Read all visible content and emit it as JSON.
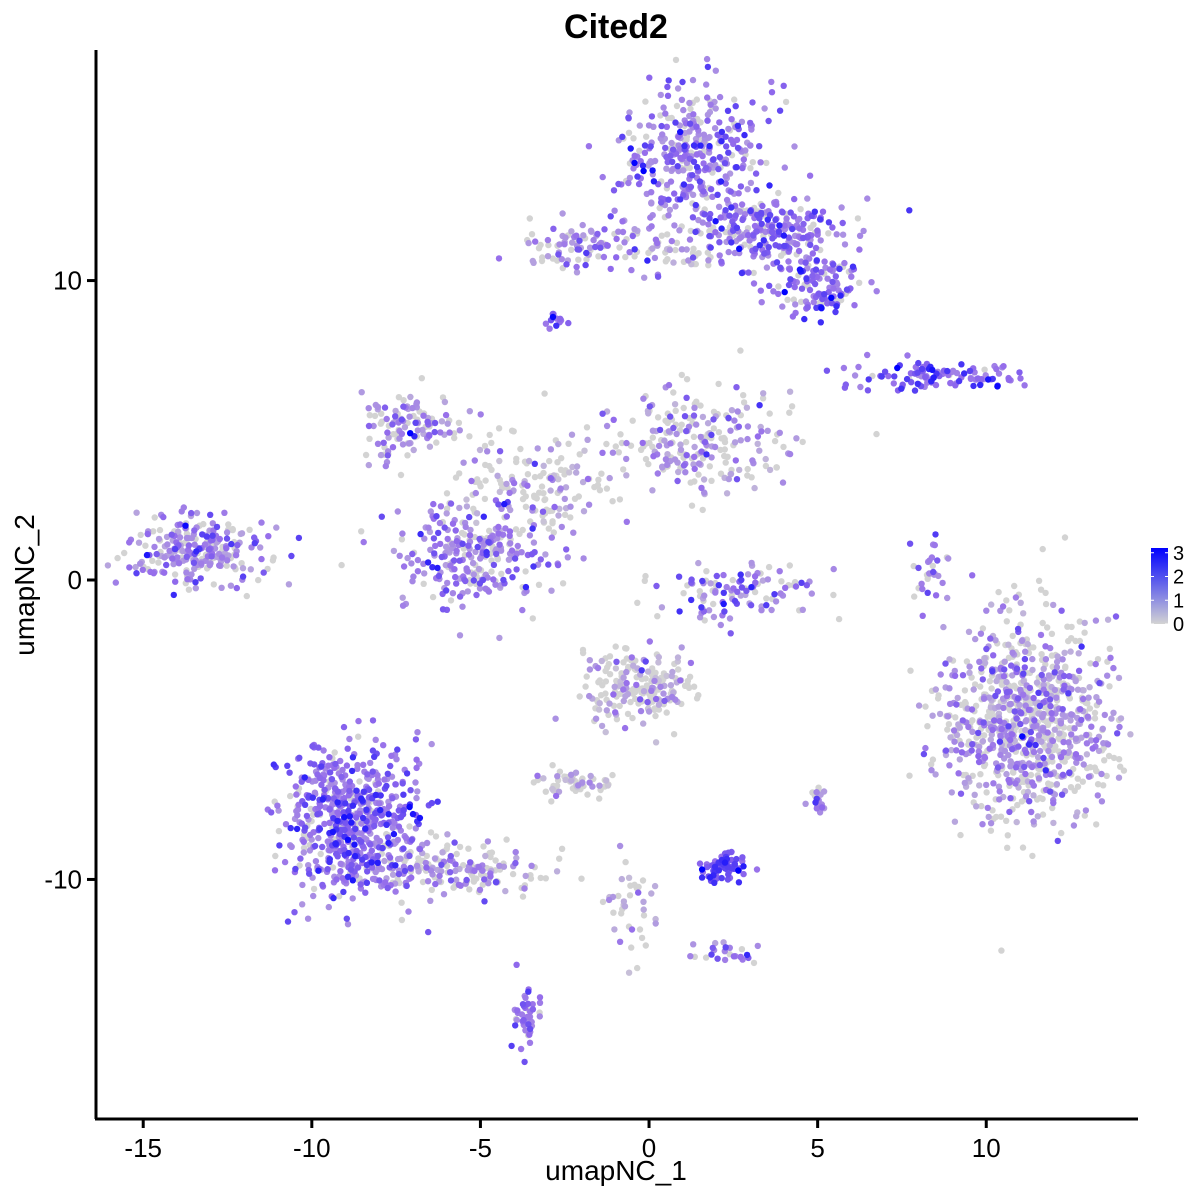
{
  "chart_data": {
    "type": "scatter",
    "title": "Cited2",
    "xlabel": "umapNC_1",
    "ylabel": "umapNC_2",
    "xlim": [
      -16.4,
      14.5
    ],
    "ylim": [
      -18.0,
      17.7
    ],
    "xticks": [
      -15,
      -10,
      -5,
      0,
      5,
      10
    ],
    "yticks": [
      -10,
      0,
      10
    ],
    "xtick_labels": [
      "-15",
      "-10",
      "-5",
      "0",
      "5",
      "10"
    ],
    "ytick_labels": [
      "-10",
      "0",
      "10"
    ],
    "grid": false,
    "legend": {
      "position": "right",
      "type": "colorbar",
      "min": 0,
      "max": 3.2,
      "ticks": [
        0,
        1,
        2,
        3
      ],
      "tick_labels": [
        "0",
        "1",
        "2",
        "3"
      ],
      "low_color": "#d3d3d3",
      "high_color": "#0000ff"
    },
    "clusters": [
      {
        "name": "top-right-cluster",
        "cx": 1.4,
        "cy": 14.2,
        "sx": 1.1,
        "sy": 1.2,
        "n": 380,
        "expr": 0.55
      },
      {
        "name": "top-right-arm",
        "cx": 3.5,
        "cy": 11.6,
        "sx": 1.2,
        "sy": 0.6,
        "n": 260,
        "expr": 0.6
      },
      {
        "name": "top-right-tail",
        "cx": 5.1,
        "cy": 9.8,
        "sx": 0.6,
        "sy": 0.5,
        "n": 120,
        "expr": 0.65
      },
      {
        "name": "top-left-strip",
        "cx": -2.2,
        "cy": 11.2,
        "sx": 0.9,
        "sy": 0.35,
        "n": 90,
        "expr": 0.45
      },
      {
        "name": "top-bridge",
        "cx": 0.8,
        "cy": 11.0,
        "sx": 0.8,
        "sy": 0.3,
        "n": 40,
        "expr": 0.15
      },
      {
        "name": "small-blip",
        "cx": -2.8,
        "cy": 8.7,
        "sx": 0.15,
        "sy": 0.12,
        "n": 12,
        "expr": 0.9
      },
      {
        "name": "right-streak",
        "cx": 8.4,
        "cy": 6.8,
        "sx": 1.3,
        "sy": 0.25,
        "n": 110,
        "expr": 0.7
      },
      {
        "name": "center-left-arm",
        "cx": -7.0,
        "cy": 5.1,
        "sx": 0.8,
        "sy": 0.6,
        "n": 120,
        "expr": 0.35
      },
      {
        "name": "center-right-arm",
        "cx": 1.4,
        "cy": 4.6,
        "sx": 1.5,
        "sy": 0.8,
        "n": 240,
        "expr": 0.3
      },
      {
        "name": "center-stem",
        "cx": -3.5,
        "cy": 3.0,
        "sx": 1.1,
        "sy": 0.9,
        "n": 160,
        "expr": 0.15
      },
      {
        "name": "center-bottom-bulb",
        "cx": -5.2,
        "cy": 0.8,
        "sx": 1.2,
        "sy": 0.9,
        "n": 260,
        "expr": 0.5
      },
      {
        "name": "left-cluster",
        "cx": -13.4,
        "cy": 1.0,
        "sx": 1.0,
        "sy": 0.55,
        "n": 260,
        "expr": 0.45
      },
      {
        "name": "small-arc",
        "cx": 2.6,
        "cy": -0.4,
        "sx": 1.1,
        "sy": 0.5,
        "n": 110,
        "expr": 0.45
      },
      {
        "name": "thin-streak",
        "cx": 8.3,
        "cy": 0.3,
        "sx": 0.3,
        "sy": 0.7,
        "n": 30,
        "expr": 0.6
      },
      {
        "name": "big-right-cluster",
        "cx": 11.2,
        "cy": -4.7,
        "sx": 1.3,
        "sy": 1.6,
        "n": 900,
        "expr": 0.3
      },
      {
        "name": "center-lower-cluster",
        "cx": -0.3,
        "cy": -3.6,
        "sx": 0.8,
        "sy": 0.6,
        "n": 200,
        "expr": 0.15
      },
      {
        "name": "center-lower-tail",
        "cx": -2.2,
        "cy": -6.8,
        "sx": 0.6,
        "sy": 0.25,
        "n": 60,
        "expr": 0.1
      },
      {
        "name": "bottom-left-cluster",
        "cx": -8.8,
        "cy": -8.0,
        "sx": 1.0,
        "sy": 1.2,
        "n": 650,
        "expr": 0.6
      },
      {
        "name": "bottom-left-tail",
        "cx": -5.8,
        "cy": -9.6,
        "sx": 1.3,
        "sy": 0.45,
        "n": 180,
        "expr": 0.35
      },
      {
        "name": "small-blue-cluster",
        "cx": 2.2,
        "cy": -9.6,
        "sx": 0.35,
        "sy": 0.25,
        "n": 70,
        "expr": 0.9
      },
      {
        "name": "small-right-blob",
        "cx": 5.0,
        "cy": -7.4,
        "sx": 0.15,
        "sy": 0.25,
        "n": 20,
        "expr": 0.5
      },
      {
        "name": "lower-center-strand",
        "cx": -0.5,
        "cy": -11.0,
        "sx": 0.4,
        "sy": 1.0,
        "n": 40,
        "expr": 0.2
      },
      {
        "name": "lower-right-strand",
        "cx": 2.2,
        "cy": -12.5,
        "sx": 0.5,
        "sy": 0.25,
        "n": 25,
        "expr": 0.4
      },
      {
        "name": "bottom-small-cluster",
        "cx": -3.6,
        "cy": -14.5,
        "sx": 0.2,
        "sy": 0.6,
        "n": 45,
        "expr": 0.6
      }
    ]
  }
}
